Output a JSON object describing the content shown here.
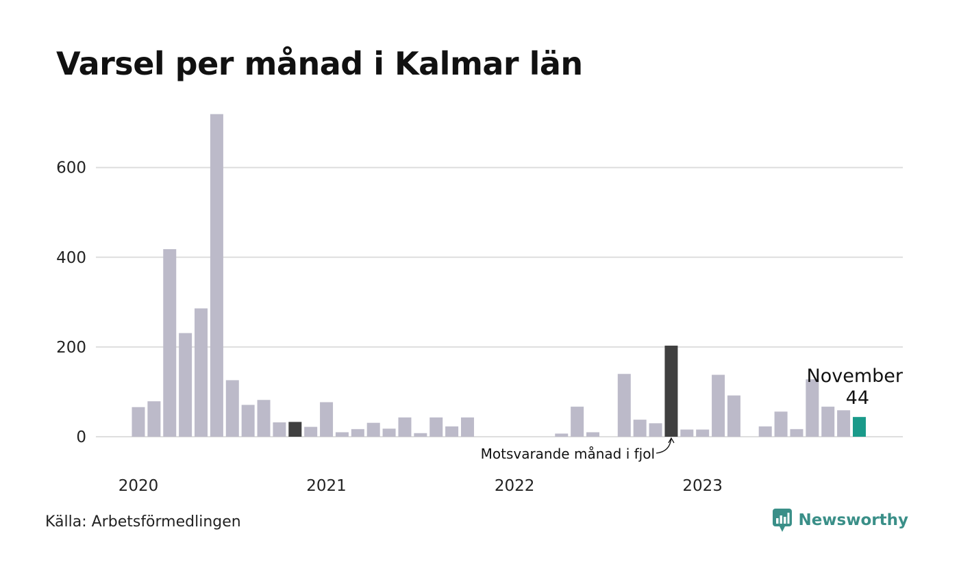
{
  "chart_data": {
    "type": "bar",
    "title": "Varsel per månad i Kalmar län",
    "source": "Källa: Arbetsförmedlingen",
    "brand": "Newsworthy",
    "months": [
      "2020-01",
      "2020-02",
      "2020-03",
      "2020-04",
      "2020-05",
      "2020-06",
      "2020-07",
      "2020-08",
      "2020-09",
      "2020-10",
      "2020-11",
      "2020-12",
      "2021-01",
      "2021-02",
      "2021-03",
      "2021-04",
      "2021-05",
      "2021-06",
      "2021-07",
      "2021-08",
      "2021-09",
      "2021-10",
      "2021-11",
      "2021-12",
      "2022-01",
      "2022-02",
      "2022-03",
      "2022-04",
      "2022-05",
      "2022-06",
      "2022-07",
      "2022-08",
      "2022-09",
      "2022-10",
      "2022-11",
      "2022-12",
      "2023-01",
      "2023-02",
      "2023-03",
      "2023-04",
      "2023-05",
      "2023-06",
      "2023-07",
      "2023-08",
      "2023-09",
      "2023-10",
      "2023-11"
    ],
    "values": [
      66,
      79,
      418,
      231,
      286,
      719,
      126,
      71,
      82,
      32,
      33,
      22,
      77,
      10,
      17,
      31,
      18,
      43,
      8,
      43,
      23,
      43,
      0,
      0,
      0,
      0,
      0,
      7,
      67,
      10,
      0,
      140,
      38,
      30,
      203,
      16,
      16,
      138,
      92,
      0,
      23,
      56,
      17,
      128,
      67,
      59,
      44
    ],
    "comparison_index": 34,
    "reference_index": 10,
    "current_index": 46,
    "current_label": "November",
    "current_value_label": "44",
    "comparison_annotation": "Motsvarande månad i fjol",
    "x_tick_labels": [
      {
        "month_index": 0,
        "label": "2020"
      },
      {
        "month_index": 12,
        "label": "2021"
      },
      {
        "month_index": 24,
        "label": "2022"
      },
      {
        "month_index": 36,
        "label": "2023"
      }
    ],
    "y_ticks": [
      0,
      200,
      400,
      600
    ],
    "ylim": [
      0,
      720
    ],
    "grid": true,
    "colors": {
      "bar": "#bcbac9",
      "highlight": "#404040",
      "current": "#1a9a8a",
      "grid": "#dedede",
      "brand": "#3a8f88"
    }
  }
}
